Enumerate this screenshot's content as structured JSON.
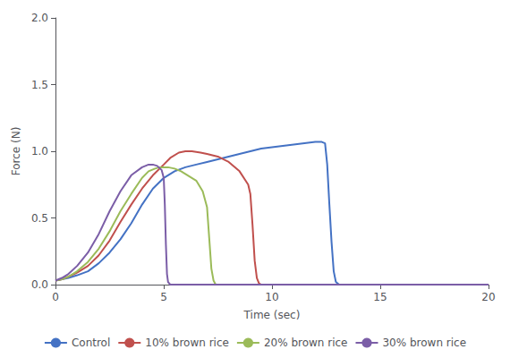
{
  "chart_data": {
    "type": "line",
    "xlabel": "Time (sec)",
    "ylabel": "Force (N)",
    "xlim": [
      0,
      20
    ],
    "ylim": [
      0,
      2
    ],
    "xticks": [
      0,
      5,
      10,
      15,
      20
    ],
    "yticks": [
      {
        "value": 0,
        "label": "0.0"
      },
      0.5,
      {
        "value": 1.0,
        "label": "1.0"
      },
      1.5,
      {
        "value": 2.0,
        "label": "2.0"
      }
    ],
    "grid": false,
    "legend": "bottom",
    "series": [
      {
        "name": "Control",
        "color": "#4472C4",
        "x": [
          0,
          0.3,
          0.6,
          1.0,
          1.5,
          2.0,
          2.5,
          3.0,
          3.5,
          4.0,
          4.5,
          5.0,
          5.5,
          6.0,
          6.5,
          7.0,
          7.5,
          8.0,
          8.5,
          9.0,
          9.5,
          10.0,
          10.5,
          11.0,
          11.5,
          12.0,
          12.3,
          12.45,
          12.55,
          12.65,
          12.75,
          12.85,
          12.95,
          13.1,
          20.0
        ],
        "values": [
          0.03,
          0.04,
          0.05,
          0.07,
          0.1,
          0.16,
          0.24,
          0.34,
          0.46,
          0.6,
          0.72,
          0.8,
          0.85,
          0.88,
          0.9,
          0.92,
          0.94,
          0.96,
          0.98,
          1.0,
          1.02,
          1.03,
          1.04,
          1.05,
          1.06,
          1.07,
          1.07,
          1.06,
          0.9,
          0.6,
          0.32,
          0.1,
          0.02,
          0.0,
          0.0
        ]
      },
      {
        "name": "10% brown rice",
        "color": "#C0504D",
        "x": [
          0,
          0.3,
          0.6,
          1.0,
          1.5,
          2.0,
          2.5,
          3.0,
          3.5,
          4.0,
          4.5,
          5.0,
          5.3,
          5.7,
          6.0,
          6.3,
          6.7,
          7.0,
          7.5,
          8.0,
          8.5,
          8.9,
          9.0,
          9.1,
          9.2,
          9.3,
          9.4,
          9.5,
          20.0
        ],
        "values": [
          0.03,
          0.04,
          0.06,
          0.09,
          0.14,
          0.22,
          0.33,
          0.47,
          0.6,
          0.72,
          0.82,
          0.9,
          0.95,
          0.99,
          1.0,
          1.0,
          0.99,
          0.98,
          0.96,
          0.92,
          0.85,
          0.75,
          0.68,
          0.45,
          0.18,
          0.05,
          0.01,
          0.0,
          0.0
        ]
      },
      {
        "name": "20% brown rice",
        "color": "#9BBB59",
        "x": [
          0,
          0.3,
          0.6,
          1.0,
          1.5,
          2.0,
          2.5,
          3.0,
          3.5,
          4.0,
          4.3,
          4.6,
          4.8,
          5.0,
          5.2,
          5.5,
          5.8,
          6.0,
          6.5,
          6.8,
          7.0,
          7.1,
          7.2,
          7.3,
          7.4,
          20.0
        ],
        "values": [
          0.03,
          0.04,
          0.06,
          0.1,
          0.17,
          0.27,
          0.4,
          0.55,
          0.68,
          0.8,
          0.85,
          0.87,
          0.88,
          0.88,
          0.88,
          0.87,
          0.85,
          0.83,
          0.78,
          0.7,
          0.58,
          0.35,
          0.12,
          0.03,
          0.0,
          0.0
        ]
      },
      {
        "name": "30% brown rice",
        "color": "#7B5EA7",
        "x": [
          0,
          0.3,
          0.6,
          1.0,
          1.5,
          2.0,
          2.5,
          3.0,
          3.5,
          4.0,
          4.3,
          4.5,
          4.7,
          4.9,
          5.0,
          5.05,
          5.1,
          5.15,
          5.2,
          5.3,
          20.0
        ],
        "values": [
          0.03,
          0.05,
          0.08,
          0.14,
          0.24,
          0.38,
          0.55,
          0.7,
          0.82,
          0.88,
          0.9,
          0.9,
          0.89,
          0.86,
          0.8,
          0.6,
          0.3,
          0.08,
          0.02,
          0.0,
          0.0
        ]
      }
    ]
  }
}
